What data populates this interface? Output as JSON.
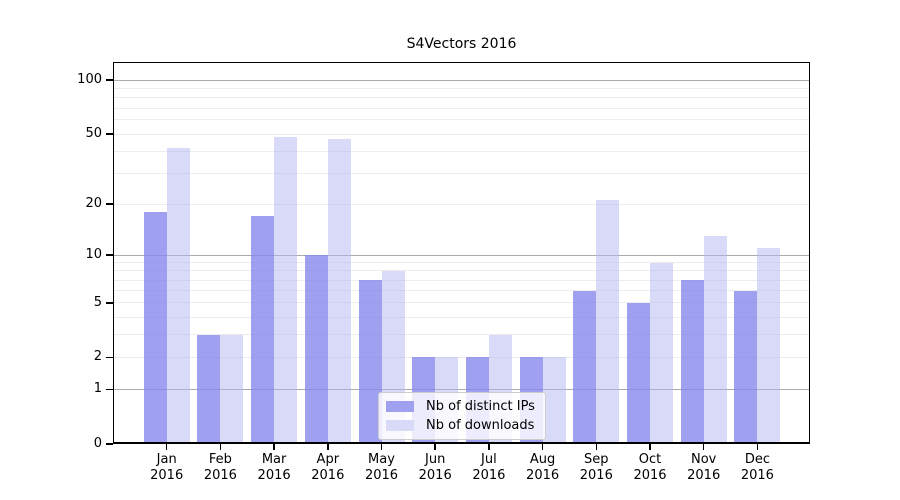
{
  "chart_data": {
    "type": "bar",
    "title": "S4Vectors 2016",
    "categories": [
      "Jan",
      "Feb",
      "Mar",
      "Apr",
      "May",
      "Jun",
      "Jul",
      "Aug",
      "Sep",
      "Oct",
      "Nov",
      "Dec"
    ],
    "category_year": "2016",
    "series": [
      {
        "name": "Nb of distinct IPs",
        "color": "#a0a0f0",
        "values": [
          18,
          3,
          17,
          10,
          7,
          2,
          2,
          2,
          6,
          5,
          7,
          6
        ]
      },
      {
        "name": "Nb of downloads",
        "color": "#d9d9f8",
        "values": [
          42,
          3,
          48,
          47,
          8,
          2,
          3,
          2,
          21,
          9,
          13,
          11
        ]
      }
    ],
    "xlabel": "",
    "ylabel": "",
    "y_scale": "log10(1+x)",
    "ylim": [
      0,
      127
    ],
    "y_ticks": [
      0,
      1,
      2,
      5,
      10,
      20,
      50,
      100
    ],
    "y_minor_grid": [
      2,
      3,
      4,
      5,
      6,
      7,
      8,
      9,
      20,
      30,
      40,
      50,
      60,
      70,
      80,
      90
    ],
    "y_major_grid": [
      1,
      10,
      100
    ],
    "grid": true,
    "legend_position": "inside-bottom-center",
    "colors": {
      "minor_grid": "#ececec",
      "major_grid": "#ababab",
      "axis": "#000000",
      "legend_border": "#cccccc",
      "background": "#ffffff"
    }
  }
}
